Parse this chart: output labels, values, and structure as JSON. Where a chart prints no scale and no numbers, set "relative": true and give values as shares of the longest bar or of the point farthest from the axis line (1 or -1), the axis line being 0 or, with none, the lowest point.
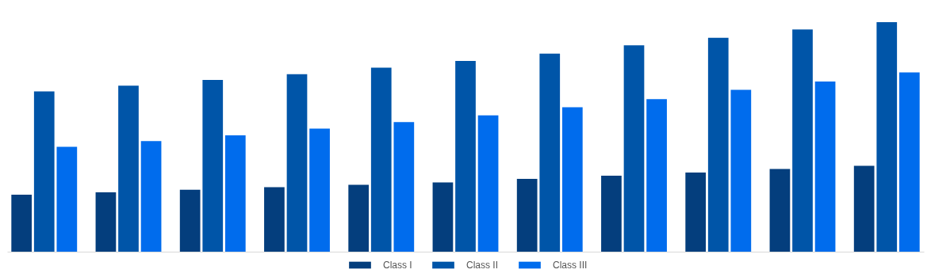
{
  "chart_data": {
    "type": "bar",
    "relative": true,
    "legend": "bottom",
    "categories": [
      null,
      null,
      null,
      null,
      null,
      null,
      null,
      null,
      null,
      null,
      null
    ],
    "series": [
      {
        "name": "Class I",
        "color": "#043e7d",
        "values": [
          0.248,
          0.259,
          0.27,
          0.281,
          0.291,
          0.302,
          0.317,
          0.331,
          0.345,
          0.36,
          0.374
        ]
      },
      {
        "name": "Class II",
        "color": "#0055a8",
        "values": [
          0.698,
          0.723,
          0.748,
          0.773,
          0.802,
          0.831,
          0.863,
          0.899,
          0.932,
          0.968,
          1
        ]
      },
      {
        "name": "Class III",
        "color": "#006ced",
        "values": [
          0.457,
          0.482,
          0.507,
          0.536,
          0.565,
          0.594,
          0.629,
          0.665,
          0.705,
          0.741,
          0.781
        ]
      }
    ]
  }
}
